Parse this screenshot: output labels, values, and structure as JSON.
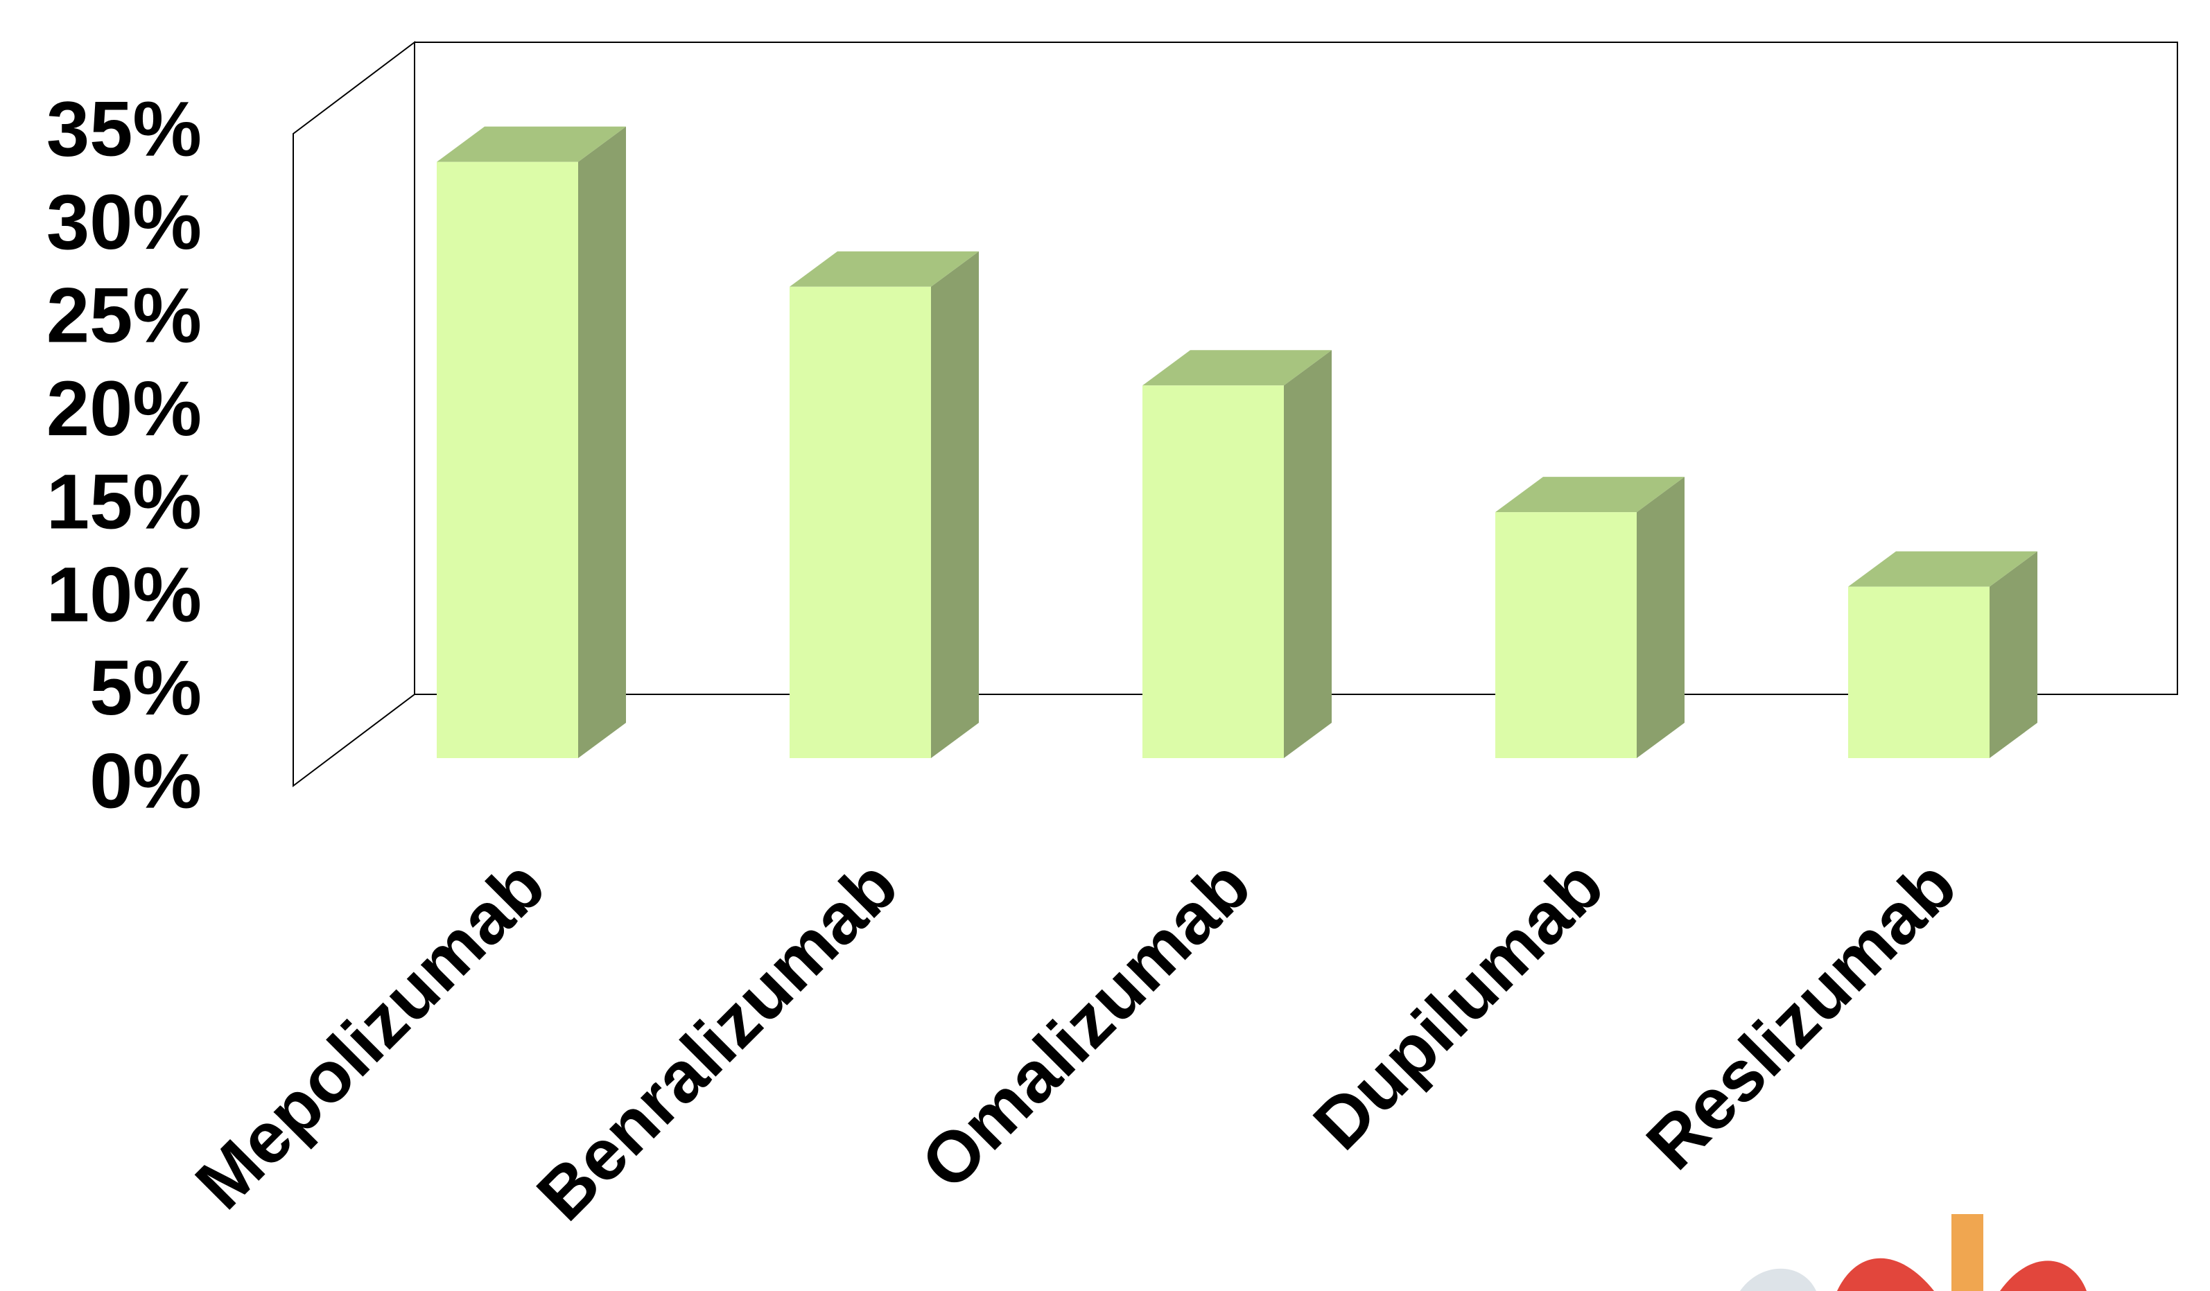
{
  "chart_data": {
    "type": "bar3d",
    "categories": [
      "Mepolizumab",
      "Benralizumab",
      "Omalizumab",
      "Dupilumab",
      "Reslizumab"
    ],
    "values": [
      32,
      25.3,
      20,
      13.2,
      9.2
    ],
    "color": "#dcfca8",
    "ylim": [
      0,
      35
    ],
    "yticks": [
      {
        "value": 0,
        "label": "0%"
      },
      {
        "value": 5,
        "label": "5%"
      },
      {
        "value": 10,
        "label": "10%"
      },
      {
        "value": 15,
        "label": "15%"
      },
      {
        "value": 20,
        "label": "20%"
      },
      {
        "value": 25,
        "label": "25%"
      },
      {
        "value": 30,
        "label": "30%"
      },
      {
        "value": 35,
        "label": "35%"
      }
    ]
  }
}
